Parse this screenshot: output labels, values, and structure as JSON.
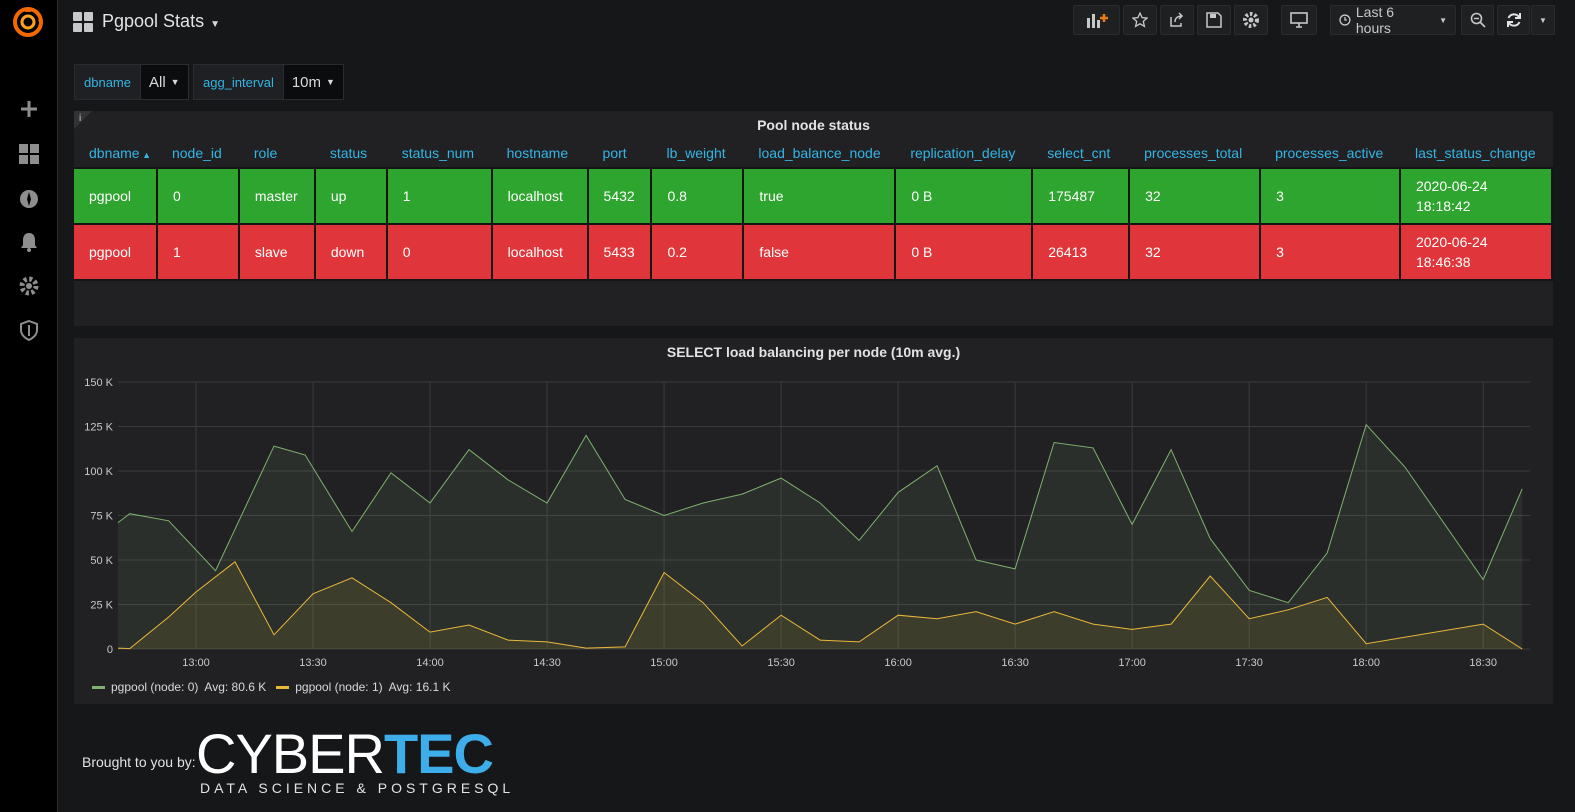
{
  "dashboard": {
    "title": "Pgpool Stats"
  },
  "toolbar": {
    "time_range": "Last 6 hours"
  },
  "variables": [
    {
      "label": "dbname",
      "value": "All"
    },
    {
      "label": "agg_interval",
      "value": "10m"
    }
  ],
  "table_panel": {
    "title": "Pool node status",
    "info": "i",
    "columns": [
      "dbname",
      "node_id",
      "role",
      "status",
      "status_num",
      "hostname",
      "port",
      "lb_weight",
      "load_balance_node",
      "replication_delay",
      "select_cnt",
      "processes_total",
      "processes_active",
      "last_status_change"
    ],
    "rows": [
      {
        "dbname": "pgpool",
        "node_id": "0",
        "role": "master",
        "status": "up",
        "status_num": "1",
        "hostname": "localhost",
        "port": "5432",
        "lb_weight": "0.8",
        "load_balance_node": "true",
        "replication_delay": "0 B",
        "select_cnt": "175487",
        "processes_total": "32",
        "processes_active": "3",
        "last_status_date": "2020-06-24",
        "last_status_time": "18:18:42",
        "state": "ok"
      },
      {
        "dbname": "pgpool",
        "node_id": "1",
        "role": "slave",
        "status": "down",
        "status_num": "0",
        "hostname": "localhost",
        "port": "5433",
        "lb_weight": "0.2",
        "load_balance_node": "false",
        "replication_delay": "0 B",
        "select_cnt": "26413",
        "processes_total": "32",
        "processes_active": "3",
        "last_status_date": "2020-06-24",
        "last_status_time": "18:46:38",
        "state": "bad"
      }
    ],
    "colors": {
      "ok": "#2ea52e",
      "bad": "#e0363b",
      "header": "#33b5e5"
    }
  },
  "chart_data": {
    "type": "area",
    "title": "SELECT load balancing per node (10m avg.)",
    "xlabel": "",
    "ylabel": "",
    "x_unit": "minutes since 12:40",
    "xlim": [
      0,
      362
    ],
    "ylim": [
      0,
      150000
    ],
    "yticks": [
      {
        "value": 0,
        "label": "0"
      },
      {
        "value": 25000,
        "label": "25 K"
      },
      {
        "value": 50000,
        "label": "50 K"
      },
      {
        "value": 75000,
        "label": "75 K"
      },
      {
        "value": 100000,
        "label": "100 K"
      },
      {
        "value": 125000,
        "label": "125 K"
      },
      {
        "value": 150000,
        "label": "150 K"
      }
    ],
    "xticks": [
      {
        "value": 20,
        "label": "13:00"
      },
      {
        "value": 50,
        "label": "13:30"
      },
      {
        "value": 80,
        "label": "14:00"
      },
      {
        "value": 110,
        "label": "14:30"
      },
      {
        "value": 140,
        "label": "15:00"
      },
      {
        "value": 170,
        "label": "15:30"
      },
      {
        "value": 200,
        "label": "16:00"
      },
      {
        "value": 230,
        "label": "16:30"
      },
      {
        "value": 260,
        "label": "17:00"
      },
      {
        "value": 290,
        "label": "17:30"
      },
      {
        "value": 320,
        "label": "18:00"
      },
      {
        "value": 350,
        "label": "18:30"
      }
    ],
    "series": [
      {
        "name": "pgpool (node: 0)",
        "avg_label": "Avg: 80.6 K",
        "color": "#7eb26d",
        "points": [
          [
            0,
            71000
          ],
          [
            3,
            76000
          ],
          [
            13,
            72000
          ],
          [
            25,
            44000
          ],
          [
            40,
            114000
          ],
          [
            48,
            109000
          ],
          [
            60,
            66000
          ],
          [
            70,
            99000
          ],
          [
            80,
            82000
          ],
          [
            90,
            112000
          ],
          [
            100,
            95000
          ],
          [
            110,
            82000
          ],
          [
            120,
            120000
          ],
          [
            130,
            84000
          ],
          [
            140,
            75000
          ],
          [
            150,
            82000
          ],
          [
            160,
            87000
          ],
          [
            170,
            96000
          ],
          [
            180,
            82000
          ],
          [
            190,
            61000
          ],
          [
            200,
            88000
          ],
          [
            210,
            103000
          ],
          [
            220,
            50000
          ],
          [
            230,
            45000
          ],
          [
            240,
            116000
          ],
          [
            250,
            113000
          ],
          [
            260,
            70000
          ],
          [
            270,
            112000
          ],
          [
            280,
            62000
          ],
          [
            290,
            33000
          ],
          [
            300,
            26000
          ],
          [
            310,
            54000
          ],
          [
            320,
            126000
          ],
          [
            330,
            102000
          ],
          [
            350,
            39000
          ],
          [
            360,
            90000
          ]
        ]
      },
      {
        "name": "pgpool (node: 1)",
        "avg_label": "Avg: 16.1 K",
        "color": "#eab839",
        "points": [
          [
            0,
            500
          ],
          [
            3,
            200
          ],
          [
            13,
            18000
          ],
          [
            20,
            32000
          ],
          [
            30,
            49000
          ],
          [
            40,
            8000
          ],
          [
            50,
            31000
          ],
          [
            60,
            40000
          ],
          [
            70,
            26000
          ],
          [
            80,
            9500
          ],
          [
            90,
            13500
          ],
          [
            100,
            5000
          ],
          [
            110,
            4000
          ],
          [
            120,
            500
          ],
          [
            130,
            1200
          ],
          [
            140,
            43000
          ],
          [
            150,
            26000
          ],
          [
            160,
            1700
          ],
          [
            170,
            19000
          ],
          [
            180,
            5000
          ],
          [
            190,
            4000
          ],
          [
            200,
            19000
          ],
          [
            210,
            17000
          ],
          [
            220,
            21000
          ],
          [
            230,
            14000
          ],
          [
            240,
            21000
          ],
          [
            250,
            14000
          ],
          [
            260,
            11000
          ],
          [
            270,
            14000
          ],
          [
            280,
            41000
          ],
          [
            290,
            17000
          ],
          [
            300,
            22000
          ],
          [
            310,
            29000
          ],
          [
            320,
            3000
          ],
          [
            350,
            14000
          ],
          [
            360,
            0
          ]
        ]
      }
    ]
  },
  "footer": {
    "label": "Brought to you by:",
    "brand_part1": "CYBER",
    "brand_part2": "TEC",
    "brand_tagline": "DATA SCIENCE & POSTGRESQL"
  }
}
